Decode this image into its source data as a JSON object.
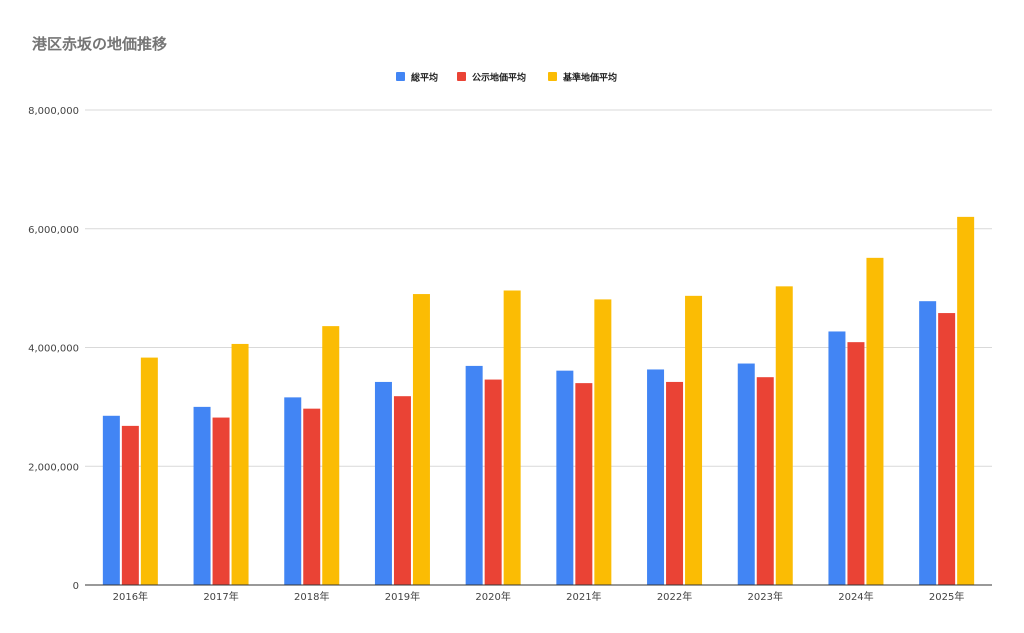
{
  "chart_data": {
    "type": "bar",
    "title": "港区赤坂の地価推移",
    "xlabel": "",
    "ylabel": "",
    "categories": [
      "2016年",
      "2017年",
      "2018年",
      "2019年",
      "2020年",
      "2021年",
      "2022年",
      "2023年",
      "2024年",
      "2025年"
    ],
    "series": [
      {
        "name": "総平均",
        "color": "#4285F4",
        "values": [
          2850000,
          3000000,
          3160000,
          3420000,
          3690000,
          3610000,
          3630000,
          3730000,
          4270000,
          4780000
        ]
      },
      {
        "name": "公示地価平均",
        "color": "#EA4335",
        "values": [
          2680000,
          2820000,
          2970000,
          3180000,
          3460000,
          3400000,
          3420000,
          3500000,
          4090000,
          4580000
        ]
      },
      {
        "name": "基準地価平均",
        "color": "#FBBC04",
        "values": [
          3830000,
          4060000,
          4360000,
          4900000,
          4960000,
          4810000,
          4870000,
          5030000,
          5510000,
          6200000
        ]
      }
    ],
    "ylim": [
      0,
      8000000
    ],
    "yticks": [
      "0",
      "2,000,000",
      "4,000,000",
      "6,000,000",
      "8,000,000"
    ],
    "ytick_values": [
      0,
      2000000,
      4000000,
      6000000,
      8000000
    ],
    "grid": true,
    "legend_position": "top-center"
  }
}
